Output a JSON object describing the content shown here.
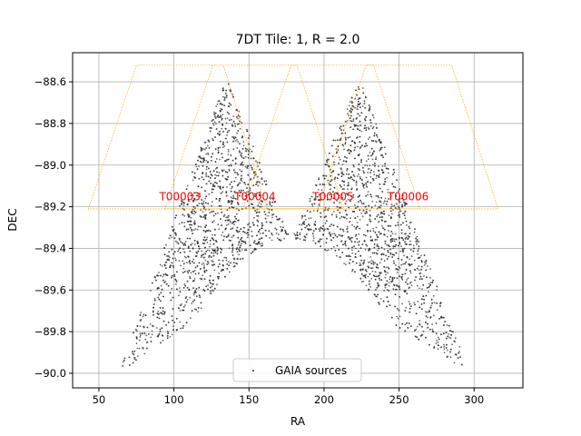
{
  "chart_data": {
    "type": "scatter",
    "title": "7DT Tile: 1, R = 2.0",
    "xlabel": "RA",
    "ylabel": "DEC",
    "xlim": [
      32.5,
      332.5
    ],
    "ylim": [
      -90.07,
      -88.46
    ],
    "xticks": [
      50,
      100,
      150,
      200,
      250,
      300
    ],
    "yticks": [
      -90.0,
      -89.8,
      -89.6,
      -89.4,
      -89.2,
      -89.0,
      -88.8,
      -88.6
    ],
    "ytick_labels": [
      "−90.0",
      "−89.8",
      "−89.6",
      "−89.4",
      "−89.2",
      "−89.0",
      "−88.8",
      "−88.6"
    ],
    "grid": true,
    "legend": {
      "placement": "lower-center",
      "entries": [
        "GAIA sources"
      ]
    },
    "series": [
      {
        "name": "GAIA sources",
        "kind": "scatter",
        "color": "#333333",
        "regions": [
          {
            "apex": [
              135,
              -88.58
            ],
            "base_left": [
              63,
              -90.0
            ],
            "base_right": [
              178,
              -89.36
            ]
          },
          {
            "apex": [
              224,
              -88.58
            ],
            "base_left": [
              178,
              -89.36
            ],
            "base_right": [
              297,
              -90.0
            ]
          },
          {
            "arch_left": [
              113,
              -89.75
            ],
            "arch_top": [
              178,
              -89.36
            ],
            "arch_right": [
              243,
              -89.75
            ]
          }
        ]
      }
    ],
    "tiles": [
      {
        "label": "T00003",
        "color": "#ffa500",
        "polygon": [
          [
            43,
            -89.21
          ],
          [
            75,
            -88.52
          ],
          [
            133,
            -88.52
          ],
          [
            162,
            -89.21
          ]
        ],
        "label_pos": [
          104,
          -89.17
        ]
      },
      {
        "label": "T00004",
        "color": "#ffa500",
        "polygon": [
          [
            94,
            -89.21
          ],
          [
            126,
            -88.52
          ],
          [
            182,
            -88.52
          ],
          [
            213,
            -89.21
          ]
        ],
        "label_pos": [
          154,
          -89.17
        ]
      },
      {
        "label": "T00005",
        "color": "#ffa500",
        "polygon": [
          [
            146,
            -89.21
          ],
          [
            178,
            -88.52
          ],
          [
            233,
            -88.52
          ],
          [
            264,
            -89.21
          ]
        ],
        "label_pos": [
          206,
          -89.17
        ]
      },
      {
        "label": "T00006",
        "color": "#ffa500",
        "polygon": [
          [
            196,
            -89.21
          ],
          [
            228,
            -88.52
          ],
          [
            285,
            -88.52
          ],
          [
            316,
            -89.21
          ]
        ],
        "label_pos": [
          256,
          -89.17
        ]
      }
    ]
  }
}
